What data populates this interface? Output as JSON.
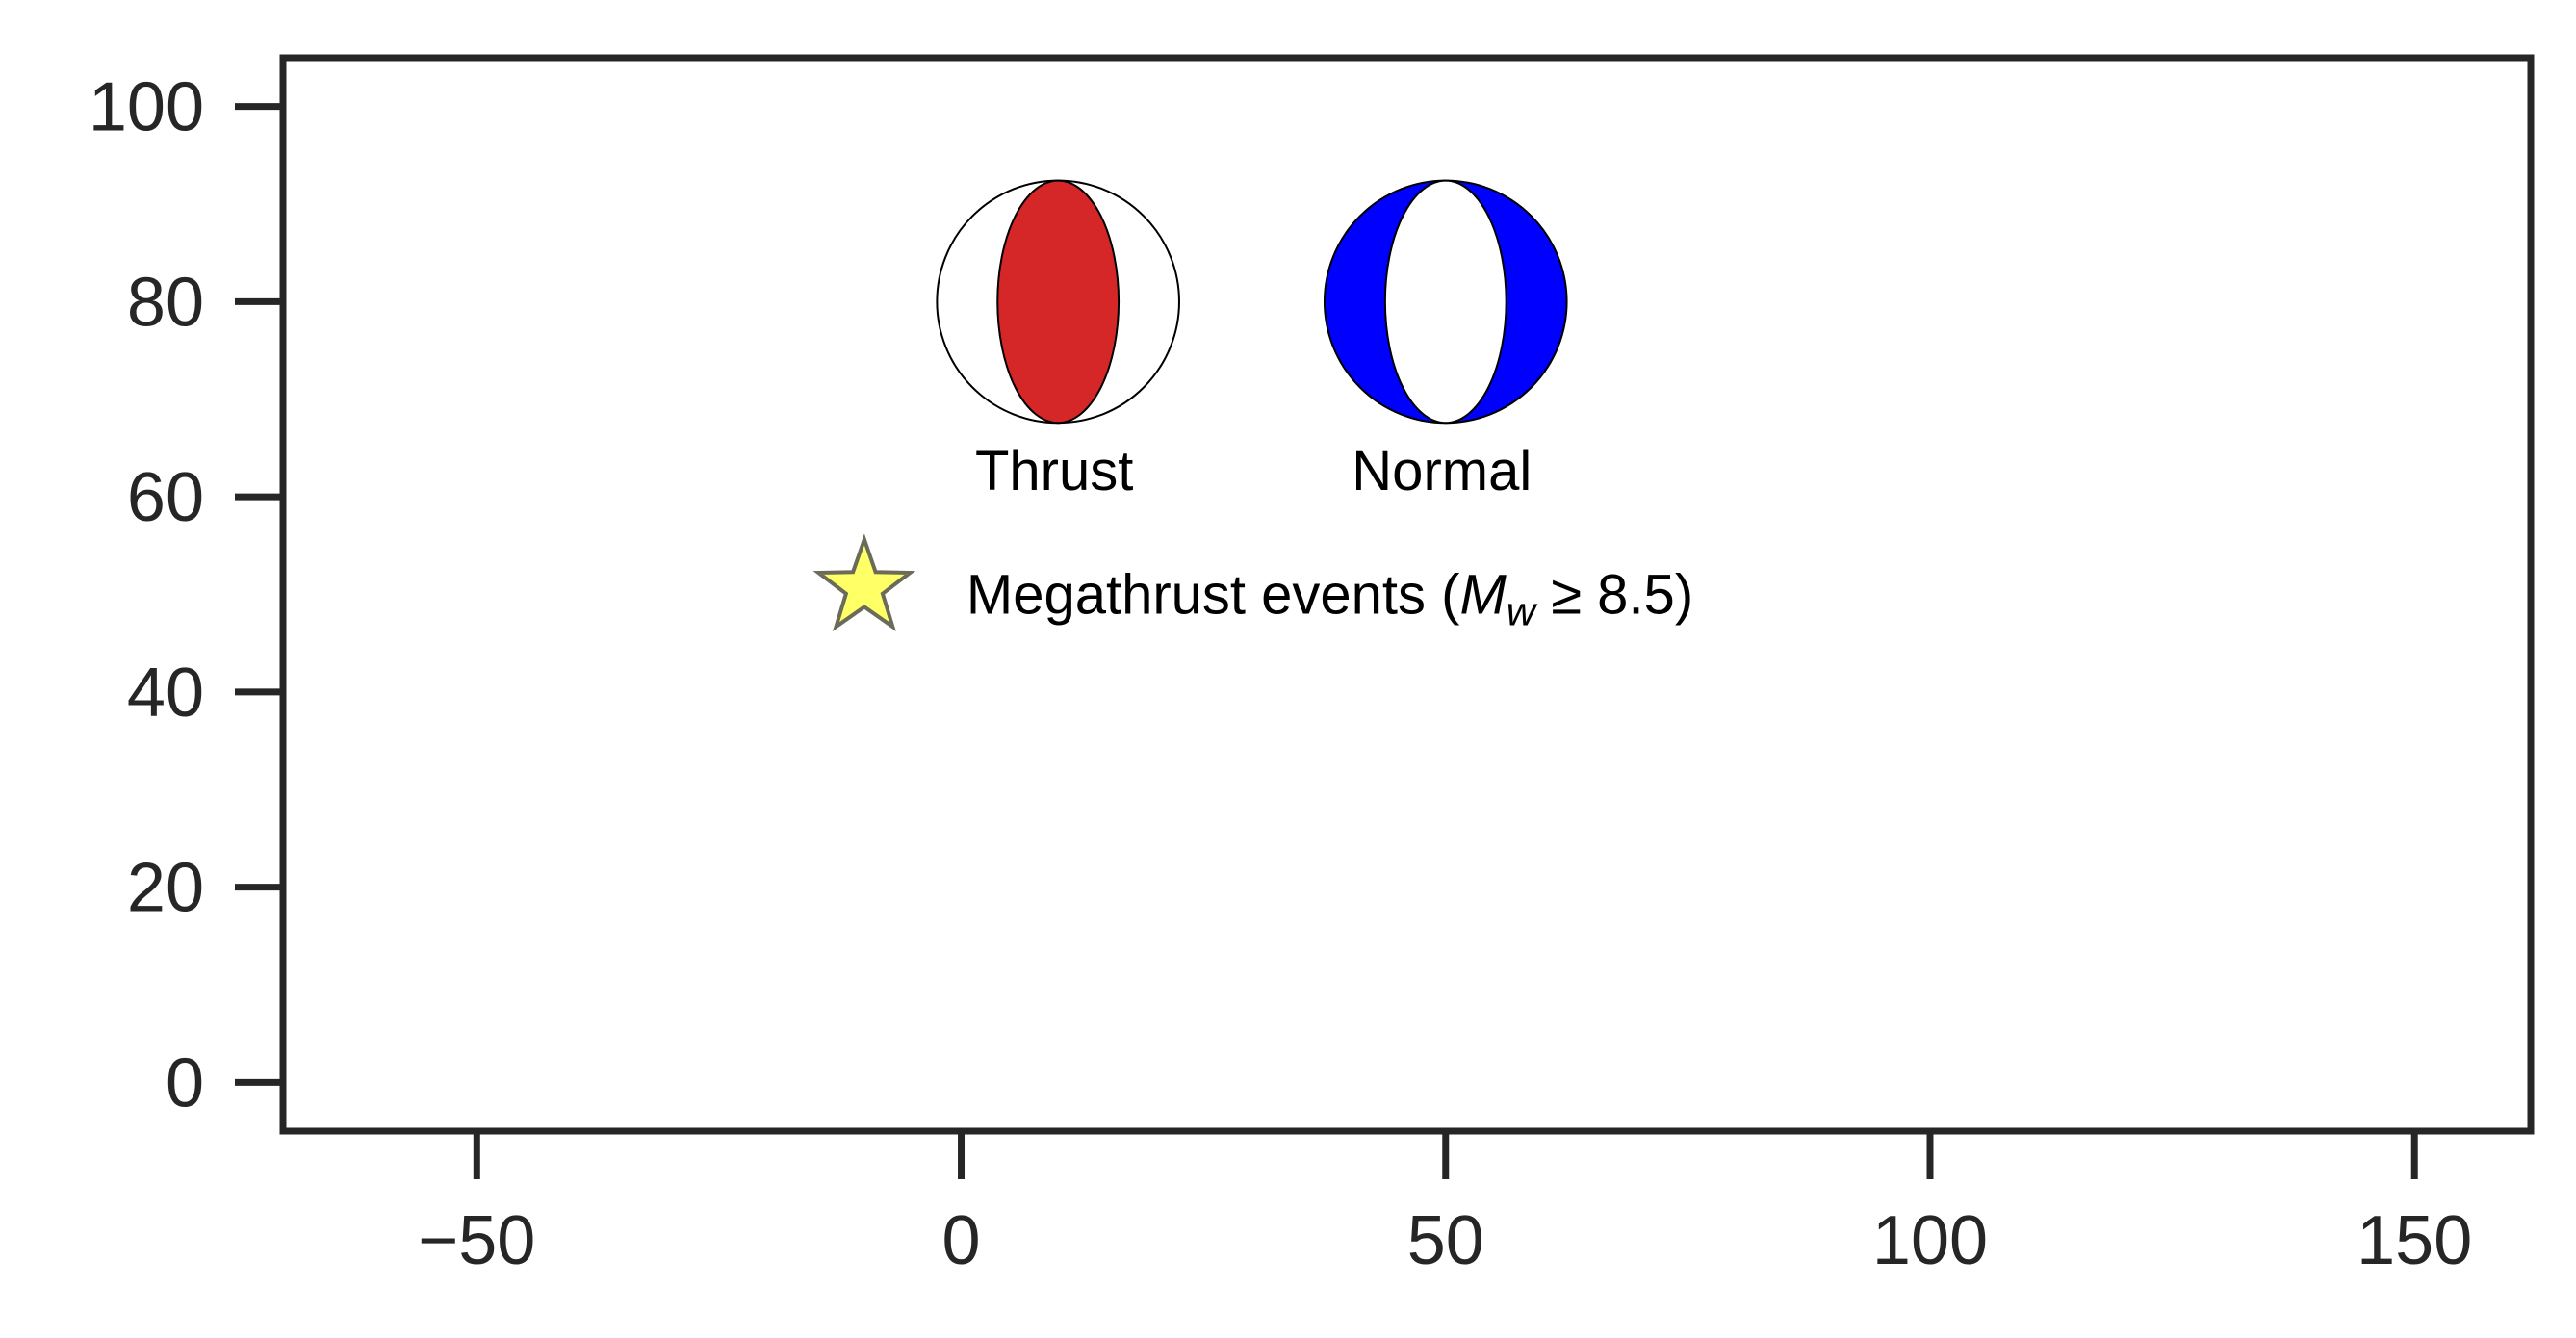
{
  "chart_data": {
    "type": "scatter",
    "title": "",
    "xlabel": "",
    "ylabel": "",
    "xlim": [
      -70,
      162
    ],
    "ylim": [
      -5,
      105
    ],
    "x_ticks": [
      {
        "value": -50,
        "label": "−50"
      },
      {
        "value": 0,
        "label": "0"
      },
      {
        "value": 50,
        "label": "50"
      },
      {
        "value": 100,
        "label": "100"
      },
      {
        "value": 150,
        "label": "150"
      }
    ],
    "y_ticks": [
      {
        "value": 0,
        "label": "0"
      },
      {
        "value": 20,
        "label": "20"
      },
      {
        "value": 40,
        "label": "40"
      },
      {
        "value": 60,
        "label": "60"
      },
      {
        "value": 80,
        "label": "80"
      },
      {
        "value": 100,
        "label": "100"
      }
    ],
    "grid": false,
    "series": [],
    "legend": {
      "placement": "upper-left inside axes",
      "beachballs": [
        {
          "label": "Thrust",
          "x": 10,
          "y": 80,
          "radius": 12.5,
          "fill_color": "#d62728",
          "filled_part": "center lens"
        },
        {
          "label": "Normal",
          "x": 50,
          "y": 80,
          "radius": 12.5,
          "fill_color": "#0000ff",
          "filled_part": "outer crescents"
        }
      ],
      "star": {
        "label_prefix": "Megathrust events (",
        "label_math_main": "M",
        "label_math_sub": "w",
        "label_suffix": " ≥ 8.5)",
        "x": -10,
        "y": 50,
        "fill_color": "#ffff66",
        "edge_color": "#6b6b5a"
      }
    },
    "colors": {
      "axis": "#262626",
      "background": "#ffffff",
      "outline": "#000000"
    }
  }
}
